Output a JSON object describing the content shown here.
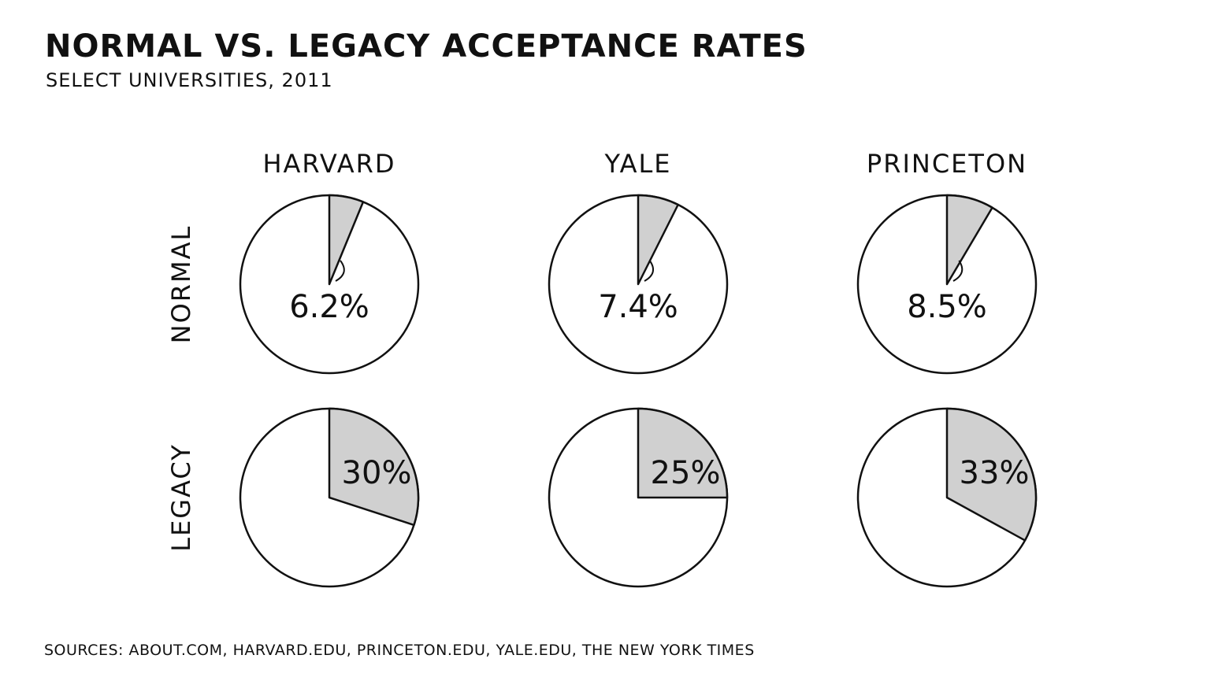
{
  "title": "NORMAL VS. LEGACY ACCEPTANCE RATES",
  "subtitle": "SELECT UNIVERSITIES, 2011",
  "sources": "SOURCES: ABOUT.COM, HARVARD.EDU, PRINCETON.EDU, YALE.EDU, THE NEW YORK TIMES",
  "colors": {
    "slice": "#d0d0d0",
    "background": "#ffffff",
    "stroke": "#111111"
  },
  "chart_data": {
    "type": "pie",
    "columns": [
      "HARVARD",
      "YALE",
      "PRINCETON"
    ],
    "rows": [
      "NORMAL",
      "LEGACY"
    ],
    "values": {
      "NORMAL": [
        6.2,
        7.4,
        8.5
      ],
      "LEGACY": [
        30,
        25,
        33
      ]
    },
    "labels": {
      "NORMAL": [
        "6.2%",
        "7.4%",
        "8.5%"
      ],
      "LEGACY": [
        "30%",
        "25%",
        "33%"
      ]
    },
    "unit": "%"
  }
}
